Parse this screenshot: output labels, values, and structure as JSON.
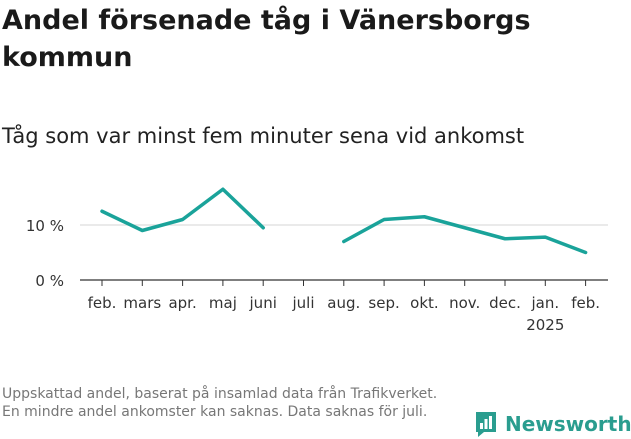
{
  "title": "Andel försenade tåg i Vänersborgs kommun",
  "subtitle": "Tåg som var minst fem minuter sena vid ankomst",
  "footnote": "Uppskattad andel, baserat på insamlad data från Trafikverket. En mindre andel ankomster kan saknas. Data saknas för juli.",
  "brand": {
    "name": "Newsworthy",
    "color": "#2a9d8f",
    "icon": "bar-chart-logo-icon"
  },
  "chart_data": {
    "type": "line",
    "title": "Andel försenade tåg i Vänersborgs kommun",
    "subtitle": "Tåg som var minst fem minuter sena vid ankomst",
    "categories": [
      "feb.",
      "mars",
      "apr.",
      "maj",
      "juni",
      "juli",
      "aug.",
      "sep.",
      "okt.",
      "nov.",
      "dec.",
      "jan.",
      "feb."
    ],
    "year_label": {
      "text": "2025",
      "under_category_index": 11
    },
    "series": [
      {
        "color": "#1aa39a",
        "values": [
          12.5,
          9.0,
          11.0,
          16.5,
          9.5,
          null,
          7.0,
          11.0,
          11.5,
          9.5,
          7.5,
          7.8,
          5.0
        ]
      }
    ],
    "yticks": [
      0,
      10
    ],
    "ytick_labels": [
      "0 %",
      "10 %"
    ],
    "ylim": [
      0,
      18
    ],
    "grid": true,
    "legend": false
  }
}
